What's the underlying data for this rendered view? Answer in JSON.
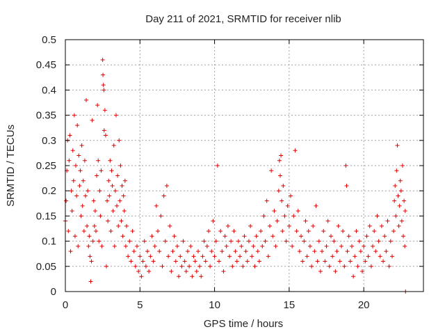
{
  "chart_data": {
    "type": "scatter",
    "title": "Day 211 of 2021, SRMTID for receiver nlib",
    "xlabel": "GPS time / hours",
    "ylabel": "SRMTID / TECUs",
    "xlim": [
      0,
      24
    ],
    "ylim": [
      0,
      0.5
    ],
    "xticks": [
      0,
      5,
      10,
      15,
      20
    ],
    "yticks": [
      0,
      0.05,
      0.1,
      0.15,
      0.2,
      0.25,
      0.3,
      0.35,
      0.4,
      0.45,
      0.5
    ],
    "xtick_labels": [
      "0",
      "5",
      "10",
      "15",
      "20"
    ],
    "ytick_labels": [
      "0",
      "0.05",
      "0.1",
      "0.15",
      "0.2",
      "0.25",
      "0.3",
      "0.35",
      "0.4",
      "0.45",
      "0.5"
    ],
    "grid": true,
    "legend": "none",
    "marker": "plus",
    "color": "#e00000",
    "series": [
      {
        "name": "SRMTID",
        "points": [
          [
            0.0,
            0.14
          ],
          [
            0.05,
            0.18
          ],
          [
            0.1,
            0.24
          ],
          [
            0.15,
            0.3
          ],
          [
            0.2,
            0.12
          ],
          [
            0.25,
            0.26
          ],
          [
            0.3,
            0.31
          ],
          [
            0.35,
            0.08
          ],
          [
            0.4,
            0.2
          ],
          [
            0.45,
            0.16
          ],
          [
            0.5,
            0.28
          ],
          [
            0.55,
            0.22
          ],
          [
            0.6,
            0.35
          ],
          [
            0.65,
            0.11
          ],
          [
            0.7,
            0.25
          ],
          [
            0.75,
            0.19
          ],
          [
            0.8,
            0.33
          ],
          [
            0.85,
            0.09
          ],
          [
            0.9,
            0.27
          ],
          [
            0.95,
            0.21
          ],
          [
            1.0,
            0.24
          ],
          [
            1.05,
            0.15
          ],
          [
            1.1,
            0.29
          ],
          [
            1.15,
            0.17
          ],
          [
            1.2,
            0.22
          ],
          [
            1.25,
            0.12
          ],
          [
            1.3,
            0.26
          ],
          [
            1.35,
            0.19
          ],
          [
            1.4,
            0.38
          ],
          [
            1.45,
            0.13
          ],
          [
            1.5,
            0.2
          ],
          [
            1.55,
            0.09
          ],
          [
            1.6,
            0.11
          ],
          [
            1.65,
            0.07
          ],
          [
            1.7,
            0.02
          ],
          [
            1.75,
            0.06
          ],
          [
            1.8,
            0.34
          ],
          [
            1.85,
            0.1
          ],
          [
            1.9,
            0.18
          ],
          [
            1.95,
            0.13
          ],
          [
            2.0,
            0.16
          ],
          [
            2.05,
            0.12
          ],
          [
            2.1,
            0.23
          ],
          [
            2.15,
            0.37
          ],
          [
            2.2,
            0.26
          ],
          [
            2.25,
            0.1
          ],
          [
            2.3,
            0.2
          ],
          [
            2.35,
            0.15
          ],
          [
            2.4,
            0.24
          ],
          [
            2.45,
            0.09
          ],
          [
            2.5,
            0.46
          ],
          [
            2.52,
            0.43
          ],
          [
            2.55,
            0.41
          ],
          [
            2.58,
            0.4
          ],
          [
            2.6,
            0.32
          ],
          [
            2.65,
            0.36
          ],
          [
            2.7,
            0.31
          ],
          [
            2.75,
            0.05
          ],
          [
            2.8,
            0.18
          ],
          [
            2.85,
            0.14
          ],
          [
            2.9,
            0.22
          ],
          [
            2.95,
            0.19
          ],
          [
            3.0,
            0.26
          ],
          [
            3.05,
            0.12
          ],
          [
            3.1,
            0.24
          ],
          [
            3.15,
            0.21
          ],
          [
            3.2,
            0.16
          ],
          [
            3.25,
            0.29
          ],
          [
            3.3,
            0.09
          ],
          [
            3.35,
            0.2
          ],
          [
            3.4,
            0.35
          ],
          [
            3.45,
            0.17
          ],
          [
            3.5,
            0.23
          ],
          [
            3.55,
            0.13
          ],
          [
            3.6,
            0.3
          ],
          [
            3.65,
            0.18
          ],
          [
            3.7,
            0.25
          ],
          [
            3.75,
            0.14
          ],
          [
            3.8,
            0.21
          ],
          [
            3.85,
            0.11
          ],
          [
            3.9,
            0.19
          ],
          [
            3.95,
            0.16
          ],
          [
            4.0,
            0.22
          ],
          [
            4.05,
            0.09
          ],
          [
            4.1,
            0.13
          ],
          [
            4.2,
            0.07
          ],
          [
            4.3,
            0.1
          ],
          [
            4.4,
            0.06
          ],
          [
            4.5,
            0.12
          ],
          [
            4.6,
            0.08
          ],
          [
            4.7,
            0.05
          ],
          [
            4.8,
            0.09
          ],
          [
            4.9,
            0.04
          ],
          [
            5.0,
            0.07
          ],
          [
            5.1,
            0.03
          ],
          [
            5.2,
            0.06
          ],
          [
            5.3,
            0.1
          ],
          [
            5.4,
            0.05
          ],
          [
            5.5,
            0.08
          ],
          [
            5.6,
            0.04
          ],
          [
            5.7,
            0.07
          ],
          [
            5.8,
            0.11
          ],
          [
            5.9,
            0.06
          ],
          [
            6.0,
            0.09
          ],
          [
            6.1,
            0.17
          ],
          [
            6.2,
            0.12
          ],
          [
            6.3,
            0.08
          ],
          [
            6.4,
            0.15
          ],
          [
            6.5,
            0.05
          ],
          [
            6.6,
            0.19
          ],
          [
            6.7,
            0.1
          ],
          [
            6.8,
            0.21
          ],
          [
            6.9,
            0.07
          ],
          [
            7.0,
            0.13
          ],
          [
            7.1,
            0.04
          ],
          [
            7.2,
            0.08
          ],
          [
            7.3,
            0.11
          ],
          [
            7.4,
            0.06
          ],
          [
            7.5,
            0.09
          ],
          [
            7.6,
            0.03
          ],
          [
            7.7,
            0.07
          ],
          [
            7.8,
            0.05
          ],
          [
            7.9,
            0.1
          ],
          [
            8.0,
            0.06
          ],
          [
            8.1,
            0.04
          ],
          [
            8.2,
            0.08
          ],
          [
            8.3,
            0.05
          ],
          [
            8.4,
            0.09
          ],
          [
            8.5,
            0.03
          ],
          [
            8.6,
            0.07
          ],
          [
            8.7,
            0.06
          ],
          [
            8.8,
            0.04
          ],
          [
            8.9,
            0.08
          ],
          [
            9.0,
            0.05
          ],
          [
            9.1,
            0.03
          ],
          [
            9.2,
            0.07
          ],
          [
            9.3,
            0.1
          ],
          [
            9.4,
            0.06
          ],
          [
            9.5,
            0.09
          ],
          [
            9.6,
            0.12
          ],
          [
            9.7,
            0.05
          ],
          [
            9.8,
            0.08
          ],
          [
            9.9,
            0.14
          ],
          [
            10.0,
            0.07
          ],
          [
            10.1,
            0.1
          ],
          [
            10.2,
            0.25
          ],
          [
            10.3,
            0.06
          ],
          [
            10.4,
            0.12
          ],
          [
            10.5,
            0.08
          ],
          [
            10.6,
            0.04
          ],
          [
            10.7,
            0.11
          ],
          [
            10.8,
            0.09
          ],
          [
            10.9,
            0.13
          ],
          [
            11.0,
            0.07
          ],
          [
            11.1,
            0.1
          ],
          [
            11.2,
            0.05
          ],
          [
            11.3,
            0.12
          ],
          [
            11.4,
            0.08
          ],
          [
            11.5,
            0.06
          ],
          [
            11.6,
            0.1
          ],
          [
            11.7,
            0.07
          ],
          [
            11.8,
            0.09
          ],
          [
            11.9,
            0.05
          ],
          [
            12.0,
            0.11
          ],
          [
            12.1,
            0.08
          ],
          [
            12.2,
            0.06
          ],
          [
            12.3,
            0.1
          ],
          [
            12.4,
            0.13
          ],
          [
            12.5,
            0.07
          ],
          [
            12.6,
            0.09
          ],
          [
            12.7,
            0.05
          ],
          [
            12.8,
            0.11
          ],
          [
            12.9,
            0.08
          ],
          [
            13.0,
            0.06
          ],
          [
            13.1,
            0.12
          ],
          [
            13.2,
            0.09
          ],
          [
            13.3,
            0.15
          ],
          [
            13.4,
            0.1
          ],
          [
            13.5,
            0.18
          ],
          [
            13.6,
            0.07
          ],
          [
            13.7,
            0.13
          ],
          [
            13.8,
            0.24
          ],
          [
            13.9,
            0.11
          ],
          [
            14.0,
            0.16
          ],
          [
            14.1,
            0.09
          ],
          [
            14.2,
            0.14
          ],
          [
            14.3,
            0.2
          ],
          [
            14.35,
            0.26
          ],
          [
            14.4,
            0.23
          ],
          [
            14.45,
            0.27
          ],
          [
            14.5,
            0.18
          ],
          [
            14.55,
            0.12
          ],
          [
            14.6,
            0.21
          ],
          [
            14.7,
            0.15
          ],
          [
            14.8,
            0.1
          ],
          [
            14.9,
            0.17
          ],
          [
            15.0,
            0.13
          ],
          [
            15.1,
            0.19
          ],
          [
            15.2,
            0.09
          ],
          [
            15.3,
            0.15
          ],
          [
            15.4,
            0.28
          ],
          [
            15.5,
            0.12
          ],
          [
            15.6,
            0.16
          ],
          [
            15.7,
            0.08
          ],
          [
            15.8,
            0.11
          ],
          [
            15.9,
            0.06
          ],
          [
            16.0,
            0.1
          ],
          [
            16.1,
            0.14
          ],
          [
            16.2,
            0.07
          ],
          [
            16.3,
            0.12
          ],
          [
            16.4,
            0.09
          ],
          [
            16.5,
            0.05
          ],
          [
            16.6,
            0.13
          ],
          [
            16.7,
            0.08
          ],
          [
            16.8,
            0.17
          ],
          [
            16.9,
            0.06
          ],
          [
            17.0,
            0.1
          ],
          [
            17.1,
            0.04
          ],
          [
            17.2,
            0.08
          ],
          [
            17.3,
            0.12
          ],
          [
            17.4,
            0.06
          ],
          [
            17.5,
            0.09
          ],
          [
            17.6,
            0.14
          ],
          [
            17.7,
            0.05
          ],
          [
            17.8,
            0.11
          ],
          [
            17.9,
            0.07
          ],
          [
            18.0,
            0.1
          ],
          [
            18.1,
            0.04
          ],
          [
            18.2,
            0.08
          ],
          [
            18.3,
            0.13
          ],
          [
            18.4,
            0.06
          ],
          [
            18.5,
            0.09
          ],
          [
            18.6,
            0.12
          ],
          [
            18.7,
            0.05
          ],
          [
            18.8,
            0.25
          ],
          [
            18.85,
            0.21
          ],
          [
            18.9,
            0.08
          ],
          [
            19.0,
            0.11
          ],
          [
            19.1,
            0.06
          ],
          [
            19.2,
            0.09
          ],
          [
            19.3,
            0.03
          ],
          [
            19.4,
            0.07
          ],
          [
            19.5,
            0.12
          ],
          [
            19.6,
            0.05
          ],
          [
            19.7,
            0.1
          ],
          [
            19.8,
            0.08
          ],
          [
            19.9,
            0.04
          ],
          [
            20.0,
            0.09
          ],
          [
            20.1,
            0.06
          ],
          [
            20.2,
            0.11
          ],
          [
            20.3,
            0.07
          ],
          [
            20.4,
            0.13
          ],
          [
            20.5,
            0.05
          ],
          [
            20.6,
            0.09
          ],
          [
            20.7,
            0.12
          ],
          [
            20.8,
            0.08
          ],
          [
            20.9,
            0.15
          ],
          [
            21.0,
            0.1
          ],
          [
            21.1,
            0.07
          ],
          [
            21.2,
            0.13
          ],
          [
            21.3,
            0.06
          ],
          [
            21.4,
            0.11
          ],
          [
            21.5,
            0.08
          ],
          [
            21.6,
            0.14
          ],
          [
            21.7,
            0.05
          ],
          [
            21.8,
            0.1
          ],
          [
            21.9,
            0.07
          ],
          [
            22.0,
            0.12
          ],
          [
            22.05,
            0.18
          ],
          [
            22.1,
            0.21
          ],
          [
            22.15,
            0.15
          ],
          [
            22.2,
            0.24
          ],
          [
            22.25,
            0.29
          ],
          [
            22.3,
            0.19
          ],
          [
            22.35,
            0.13
          ],
          [
            22.4,
            0.17
          ],
          [
            22.45,
            0.22
          ],
          [
            22.5,
            0.2
          ],
          [
            22.55,
            0.14
          ],
          [
            22.6,
            0.25
          ],
          [
            22.65,
            0.11
          ],
          [
            22.7,
            0.18
          ],
          [
            22.75,
            0.09
          ],
          [
            22.78,
            0.16
          ],
          [
            22.8,
            0.0
          ]
        ]
      }
    ]
  }
}
